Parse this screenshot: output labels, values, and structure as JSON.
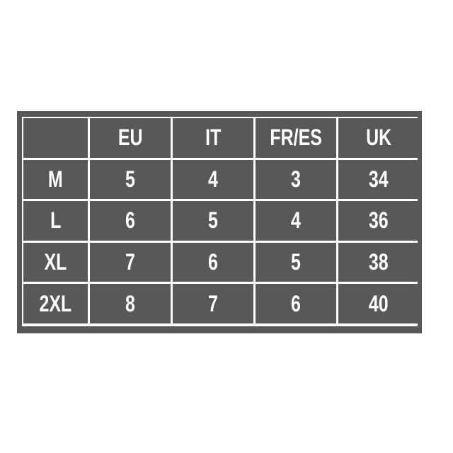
{
  "table": {
    "headers": [
      "",
      "EU",
      "IT",
      "FR/ES",
      "UK"
    ],
    "rows": [
      [
        "M",
        "5",
        "4",
        "3",
        "34"
      ],
      [
        "L",
        "6",
        "5",
        "4",
        "36"
      ],
      [
        "XL",
        "7",
        "6",
        "5",
        "38"
      ],
      [
        "2XL",
        "8",
        "7",
        "6",
        "40"
      ]
    ]
  },
  "colors": {
    "cell_background": "#585858",
    "text": "#ffffff",
    "grid_lines": "#ffffff"
  }
}
